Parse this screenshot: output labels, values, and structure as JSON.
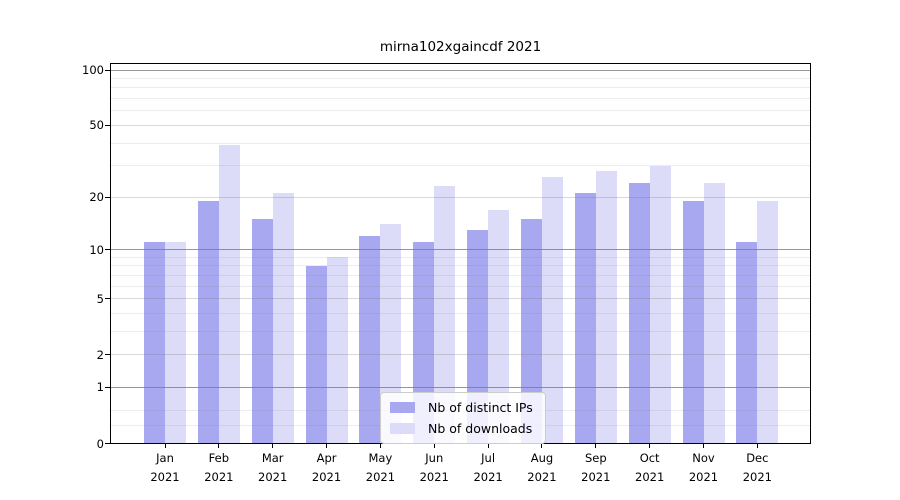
{
  "chart_data": {
    "type": "bar",
    "title": "mirna102xgaincdf 2021",
    "categories": [
      {
        "month": "Jan",
        "year": "2021"
      },
      {
        "month": "Feb",
        "year": "2021"
      },
      {
        "month": "Mar",
        "year": "2021"
      },
      {
        "month": "Apr",
        "year": "2021"
      },
      {
        "month": "May",
        "year": "2021"
      },
      {
        "month": "Jun",
        "year": "2021"
      },
      {
        "month": "Jul",
        "year": "2021"
      },
      {
        "month": "Aug",
        "year": "2021"
      },
      {
        "month": "Sep",
        "year": "2021"
      },
      {
        "month": "Oct",
        "year": "2021"
      },
      {
        "month": "Nov",
        "year": "2021"
      },
      {
        "month": "Dec",
        "year": "2021"
      }
    ],
    "series": [
      {
        "name": "Nb of distinct IPs",
        "color": "#a8a8f0",
        "values": [
          11,
          19,
          15,
          8,
          12,
          11,
          13,
          15,
          21,
          24,
          19,
          11
        ]
      },
      {
        "name": "Nb of downloads",
        "color": "#dcdcf8",
        "values": [
          11,
          39,
          21,
          9,
          14,
          23,
          17,
          26,
          28,
          30,
          24,
          19
        ]
      }
    ],
    "y_scale": "log1p",
    "ylim": [
      0,
      110
    ],
    "y_major_ticks": [
      0,
      1,
      2,
      5,
      10,
      20,
      50,
      100
    ],
    "y_decade_gridlines": [
      1,
      10,
      100
    ],
    "y_submajor_gridlines": [
      2,
      5,
      20,
      50
    ],
    "y_minor_gridlines": [
      0.25,
      0.5,
      3,
      4,
      6,
      7,
      8,
      9,
      30,
      40,
      60,
      70,
      80,
      90
    ],
    "grid": true,
    "legend_position": "lower center"
  }
}
